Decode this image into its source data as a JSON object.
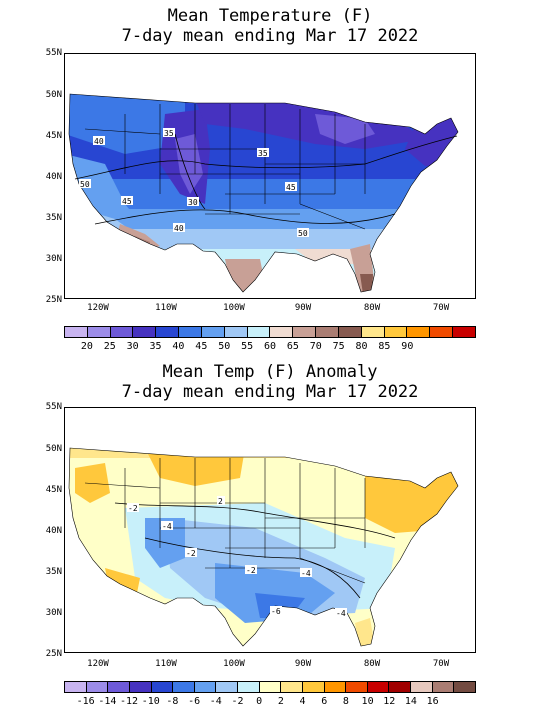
{
  "maps": [
    {
      "title_line1": "Mean Temperature (F)",
      "title_line2": "7-day mean ending Mar 17 2022",
      "lat_labels": [
        "55N",
        "50N",
        "45N",
        "40N",
        "35N",
        "30N",
        "25N"
      ],
      "lon_labels": [
        "120W",
        "110W",
        "100W",
        "90W",
        "80W",
        "70W"
      ],
      "colorbar": {
        "colors": [
          "#c8b4f0",
          "#9c8ce8",
          "#6e5ad8",
          "#4632c0",
          "#2846d2",
          "#3c78e6",
          "#64a0f0",
          "#a0c8f5",
          "#c8f0fa",
          "#f0dcd2",
          "#c8a096",
          "#aa7d73",
          "#875a50",
          "#ffe68c",
          "#ffc83c",
          "#ff9600",
          "#f04b00",
          "#c80000"
        ],
        "labels": [
          "20",
          "25",
          "30",
          "35",
          "40",
          "45",
          "50",
          "55",
          "60",
          "65",
          "70",
          "75",
          "80",
          "85",
          "90"
        ]
      },
      "contour_labels": [
        "40",
        "35",
        "35",
        "50",
        "45",
        "45",
        "30",
        "40",
        "50"
      ]
    },
    {
      "title_line1": "Mean Temp (F) Anomaly",
      "title_line2": "7-day mean ending Mar 17 2022",
      "lat_labels": [
        "55N",
        "50N",
        "45N",
        "40N",
        "35N",
        "30N",
        "25N"
      ],
      "lon_labels": [
        "120W",
        "110W",
        "100W",
        "90W",
        "80W",
        "70W"
      ],
      "colorbar": {
        "colors": [
          "#c8b4f0",
          "#9c8ce8",
          "#6e5ad8",
          "#4632c0",
          "#2846d2",
          "#3c78e6",
          "#64a0f0",
          "#a0c8f5",
          "#c8f0fa",
          "#ffffc8",
          "#ffe68c",
          "#ffc83c",
          "#ff9600",
          "#f04b00",
          "#c80000",
          "#a00000",
          "#e6c8be",
          "#aa7d73",
          "#734b41"
        ],
        "labels": [
          "-16",
          "-14",
          "-12",
          "-10",
          "-8",
          "-6",
          "-4",
          "-2",
          "0",
          "2",
          "4",
          "6",
          "8",
          "10",
          "12",
          "14",
          "16"
        ]
      },
      "contour_labels": [
        "2",
        "-2",
        "-4",
        "-2",
        "-4",
        "-6",
        "-2",
        "-4"
      ]
    }
  ]
}
